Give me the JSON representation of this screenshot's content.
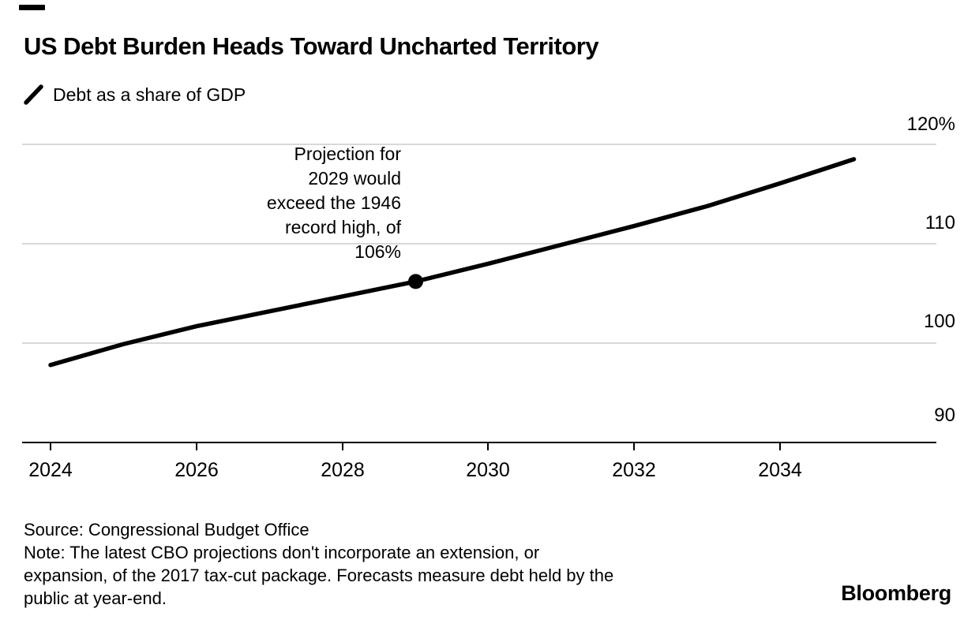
{
  "header": {
    "title": "US Debt Burden Heads Toward Uncharted Territory"
  },
  "legend": {
    "label": "Debt as a share of GDP"
  },
  "chart_data": {
    "type": "line",
    "title": "US Debt Burden Heads Toward Uncharted Territory",
    "x": [
      2024,
      2025,
      2026,
      2027,
      2028,
      2029,
      2030,
      2031,
      2032,
      2033,
      2034,
      2035
    ],
    "series": [
      {
        "name": "Debt as a share of GDP",
        "values": [
          97.8,
          99.9,
          101.7,
          103.2,
          104.7,
          106.2,
          108.0,
          109.9,
          111.8,
          113.8,
          116.1,
          118.5
        ]
      }
    ],
    "yunit": "%",
    "ylim": [
      88,
      121
    ],
    "y_gridlines": [
      90,
      100,
      110,
      120
    ],
    "grid": "horizontal",
    "legend_position": "top-left",
    "annotation": {
      "text": "Projection for\n2029 would\nexceed the 1946\nrecord high, of\n106%",
      "target_year": 2029,
      "target_value": 106.2
    }
  },
  "yaxis": {
    "labels": [
      "120%",
      "110",
      "100",
      "90"
    ]
  },
  "xaxis": {
    "labels": [
      "2024",
      "2026",
      "2028",
      "2030",
      "2032",
      "2034"
    ]
  },
  "footer": {
    "source": "Source: Congressional Budget Office",
    "note": "Note: The latest CBO projections don't incorporate an extension, or\nexpansion, of the 2017 tax-cut package. Forecasts measure debt held by the\npublic at year-end.",
    "brand": "Bloomberg"
  },
  "colors": {
    "line": "#000000",
    "marker": "#000000",
    "grid": "#d8d8d8",
    "axis": "#000000",
    "text": "#000000",
    "background": "#ffffff"
  }
}
